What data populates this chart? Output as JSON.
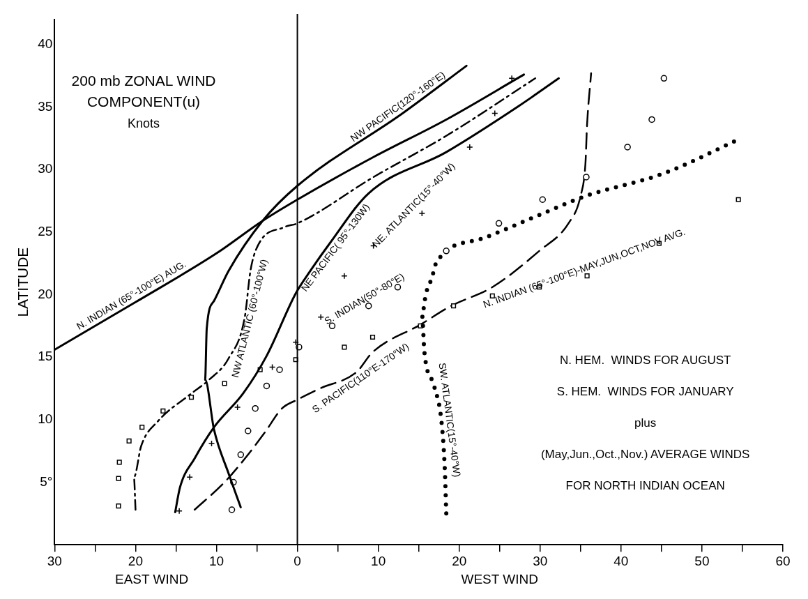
{
  "chart_data": {
    "type": "line",
    "title": "200 mb ZONAL WIND COMPONENT(u)",
    "subtitle": "Knots",
    "xlabel": "WEST WIND",
    "ylabel": "LATITUDE",
    "annotations": [
      "EAST WIND",
      "N. HEM.  WINDS FOR AUGUST",
      "S. HEM.  WINDS FOR JANUARY",
      "plus",
      "(May,Jun.,Oct.,Nov.) AVERAGE WINDS",
      "FOR NORTH INDIAN OCEAN"
    ],
    "xlim": [
      -30,
      60
    ],
    "ylim": [
      0,
      42
    ],
    "xticks": [
      {
        "value": -30,
        "label": "30"
      },
      {
        "value": -25,
        "label": null
      },
      {
        "value": -20,
        "label": "20"
      },
      {
        "value": -15,
        "label": null
      },
      {
        "value": -10,
        "label": "10"
      },
      {
        "value": -5,
        "label": null
      },
      0,
      {
        "value": 5,
        "label": null
      },
      10,
      {
        "value": 15,
        "label": null
      },
      20,
      {
        "value": 25,
        "label": null
      },
      30,
      {
        "value": 35,
        "label": null
      },
      40,
      {
        "value": 45,
        "label": null
      },
      50,
      {
        "value": 55,
        "label": null
      },
      60
    ],
    "yticks": [
      {
        "value": 5,
        "label": "5°"
      },
      10,
      15,
      20,
      25,
      30,
      35,
      40
    ],
    "grid": false,
    "legend": false,
    "ref_lines": [
      {
        "axis": "x",
        "value": 0,
        "color": "#000000"
      }
    ],
    "series": [
      {
        "name": "N. INDIAN (65°-100°E) AUG.",
        "color": "#000000",
        "line_style": "solid",
        "marker": "none",
        "x": [
          -30,
          -20,
          -10,
          -4.3,
          0,
          9.4,
          18.4,
          28
        ],
        "values": [
          15.6,
          19.4,
          23.3,
          25.9,
          27.6,
          31,
          34,
          37.6
        ]
      },
      {
        "name": "NW PACIFIC(120°-160°E)",
        "color": "#000000",
        "line_style": "solid",
        "marker": "none",
        "x": [
          -7,
          -8.5,
          -10.3,
          -11.4,
          -11.2,
          -10.3,
          -8.5,
          -4.3,
          0,
          13,
          20.9
        ],
        "values": [
          3,
          5.7,
          9.2,
          13.2,
          17.3,
          19.5,
          21.9,
          25.9,
          28.7,
          34.5,
          38.3
        ]
      },
      {
        "name": "NW ATLANTIC (60°-100°W)",
        "color": "#000000",
        "line_style": "dashdot",
        "marker": "none",
        "x": [
          -20,
          -20.2,
          -19.3,
          -17.2,
          -13.3,
          -10.9,
          -8.5,
          -6.5,
          -5.8,
          -4.9,
          -1.6,
          0,
          9.4,
          18.4,
          29.4
        ],
        "values": [
          2.8,
          5.4,
          7.9,
          9.9,
          12,
          13.2,
          14.9,
          18.2,
          21.9,
          23.9,
          25.4,
          25.7,
          29.4,
          32.7,
          37.3
        ]
      },
      {
        "name": "NE PACIFIC( 95°-130W)",
        "color": "#000000",
        "line_style": "solid",
        "marker": "none",
        "x": [
          -15.1,
          -14.5,
          -12.7,
          -10.3,
          -6.7,
          -3.8,
          -0.2,
          1.6,
          4,
          8.8,
          18.4,
          27.4,
          32.3
        ],
        "values": [
          2.6,
          4.6,
          6.9,
          9.4,
          12.1,
          15.1,
          20.1,
          21.9,
          24.1,
          28.1,
          31.4,
          35.1,
          37.3
        ]
      },
      {
        "name": "NE. ATLANTIC(15°-40°W)",
        "color": "#000000",
        "type": "scatter",
        "line_style": "none",
        "marker": "cross",
        "x": [
          -14.6,
          -13.3,
          -10.6,
          -7.4,
          -3.1,
          -0.2,
          2.9,
          5.8,
          9.4,
          15.4,
          21.3,
          24.4,
          26.5
        ],
        "values": [
          2.7,
          5.4,
          8.1,
          11,
          14.2,
          16.2,
          18.2,
          21.5,
          23.9,
          26.5,
          31.8,
          34.5,
          37.3
        ]
      },
      {
        "name": "S. INDIAN(50°-80°E)",
        "color": "#000000",
        "type": "scatter",
        "line_style": "none",
        "marker": "circle",
        "x": [
          -8.1,
          -7.9,
          -7,
          -6.1,
          -5.2,
          -3.8,
          -2.2,
          0.2,
          4.3,
          8.8,
          12.4,
          18.4,
          24.9,
          30.3,
          35.7,
          40.8,
          43.8,
          45.3
        ],
        "values": [
          2.8,
          5,
          7.2,
          9.1,
          10.9,
          12.7,
          14,
          15.8,
          17.5,
          19.1,
          20.6,
          23.5,
          25.7,
          27.6,
          29.4,
          31.8,
          34,
          37.3
        ]
      },
      {
        "name": "SW. ATLANTIC(15°-40°W)",
        "color": "#000000",
        "line_style": "dotted",
        "marker": "none",
        "x": [
          18.4,
          18.2,
          17.8,
          16.9,
          15.7,
          15.4,
          15.9,
          16.6,
          17.2,
          22.9,
          28.9,
          35.7,
          45.3,
          54.5
        ],
        "values": [
          2.5,
          6.3,
          9.9,
          12.7,
          15.4,
          18.4,
          20.1,
          21.3,
          22.6,
          24.5,
          26.1,
          27.9,
          29.7,
          32.4
        ]
      },
      {
        "name": "N. INDIAN (65°-100°E)-MAY,JUN,OCT,NOV AVG.",
        "color": "#000000",
        "type": "scatter",
        "line_style": "none",
        "marker": "square",
        "x": [
          -22.1,
          -22.1,
          -22,
          -20.8,
          -19.2,
          -16.6,
          -13.1,
          -9,
          -4.6,
          -0.2,
          5.8,
          9.3,
          15.2,
          19.3,
          24.1,
          29.9,
          35.8,
          44.7,
          54.5
        ],
        "values": [
          3.1,
          5.3,
          6.6,
          8.3,
          9.4,
          10.7,
          11.8,
          12.9,
          14,
          14.8,
          15.8,
          16.6,
          17.5,
          19.1,
          19.9,
          20.6,
          21.5,
          24.1,
          27.6
        ]
      },
      {
        "name": "S. PACIFIC(110°E-170°W)",
        "color": "#000000",
        "line_style": "dashed",
        "marker": "none",
        "x": [
          -12.7,
          -9,
          -6.6,
          -4,
          -1.9,
          0,
          2.8,
          7.3,
          9.3,
          15.2,
          19,
          24.1,
          29.9,
          33.5,
          35,
          35.6,
          35.8,
          36.3
        ],
        "values": [
          2.8,
          5,
          6.8,
          9,
          10.9,
          11.6,
          12.5,
          13.8,
          15.4,
          17.6,
          19.1,
          20.6,
          23.5,
          25.7,
          27.9,
          30.5,
          33.6,
          37.7
        ]
      }
    ]
  }
}
